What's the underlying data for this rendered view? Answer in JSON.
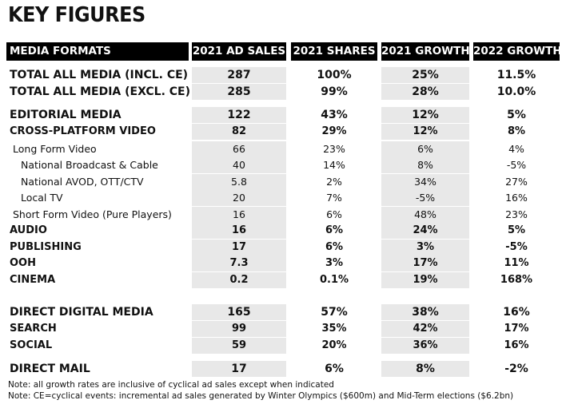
{
  "title": "KEY FIGURES",
  "columns": [
    "MEDIA FORMATS",
    "2021 AD SALES",
    "2021 SHARES",
    "2021 GROWTH",
    "2022 GROWTH"
  ],
  "rows": [
    {
      "label": "TOTAL ALL MEDIA (INCL. CE)",
      "ad_sales": "287",
      "shares": "100%",
      "growth_2021": "25%",
      "growth_2022": "11.5%",
      "style": "bold",
      "indent": 0
    },
    {
      "label": "TOTAL ALL MEDIA (EXCL. CE)",
      "ad_sales": "285",
      "shares": "99%",
      "growth_2021": "28%",
      "growth_2022": "10.0%",
      "style": "bold",
      "indent": 0
    },
    {
      "label": "EDITORIAL MEDIA",
      "ad_sales": "122",
      "shares": "43%",
      "growth_2021": "12%",
      "growth_2022": "5%",
      "style": "bold",
      "indent": 0
    },
    {
      "label": "CROSS-PLATFORM VIDEO",
      "ad_sales": "82",
      "shares": "29%",
      "growth_2021": "12%",
      "growth_2022": "8%",
      "style": "mid",
      "indent": 0
    },
    {
      "label": "Long Form Video",
      "ad_sales": "66",
      "shares": "23%",
      "growth_2021": "6%",
      "growth_2022": "4%",
      "style": "sub",
      "indent": 1
    },
    {
      "label": "National Broadcast & Cable",
      "ad_sales": "40",
      "shares": "14%",
      "growth_2021": "8%",
      "growth_2022": "-5%",
      "style": "sub",
      "indent": 2
    },
    {
      "label": "National AVOD, OTT/CTV",
      "ad_sales": "5.8",
      "shares": "2%",
      "growth_2021": "34%",
      "growth_2022": "27%",
      "style": "sub",
      "indent": 2
    },
    {
      "label": "Local TV",
      "ad_sales": "20",
      "shares": "7%",
      "growth_2021": "-5%",
      "growth_2022": "16%",
      "style": "sub",
      "indent": 2
    },
    {
      "label": "Short Form Video (Pure Players)",
      "ad_sales": "16",
      "shares": "6%",
      "growth_2021": "48%",
      "growth_2022": "23%",
      "style": "sub",
      "indent": 1
    },
    {
      "label": "AUDIO",
      "ad_sales": "16",
      "shares": "6%",
      "growth_2021": "24%",
      "growth_2022": "5%",
      "style": "mid",
      "indent": 0
    },
    {
      "label": "PUBLISHING",
      "ad_sales": "17",
      "shares": "6%",
      "growth_2021": "3%",
      "growth_2022": "-5%",
      "style": "mid",
      "indent": 0
    },
    {
      "label": "OOH",
      "ad_sales": "7.3",
      "shares": "3%",
      "growth_2021": "17%",
      "growth_2022": "11%",
      "style": "mid",
      "indent": 0
    },
    {
      "label": "CINEMA",
      "ad_sales": "0.2",
      "shares": "0.1%",
      "growth_2021": "19%",
      "growth_2022": "168%",
      "style": "mid",
      "indent": 0
    },
    {
      "label": "DIRECT DIGITAL MEDIA",
      "ad_sales": "165",
      "shares": "57%",
      "growth_2021": "38%",
      "growth_2022": "16%",
      "style": "bold",
      "indent": 0
    },
    {
      "label": "SEARCH",
      "ad_sales": "99",
      "shares": "35%",
      "growth_2021": "42%",
      "growth_2022": "17%",
      "style": "mid",
      "indent": 0
    },
    {
      "label": "SOCIAL",
      "ad_sales": "59",
      "shares": "20%",
      "growth_2021": "36%",
      "growth_2022": "16%",
      "style": "mid",
      "indent": 0
    },
    {
      "label": "DIRECT MAIL",
      "ad_sales": "17",
      "shares": "6%",
      "growth_2021": "8%",
      "growth_2022": "-2%",
      "style": "bold",
      "indent": 0
    }
  ],
  "notes": [
    "Note: all growth rates are inclusive of cyclical ad sales except when indicated",
    "Note: CE=cyclical events: incremental ad sales generated by Winter Olympics ($600m) and Mid-Term elections ($6.2bn)"
  ]
}
